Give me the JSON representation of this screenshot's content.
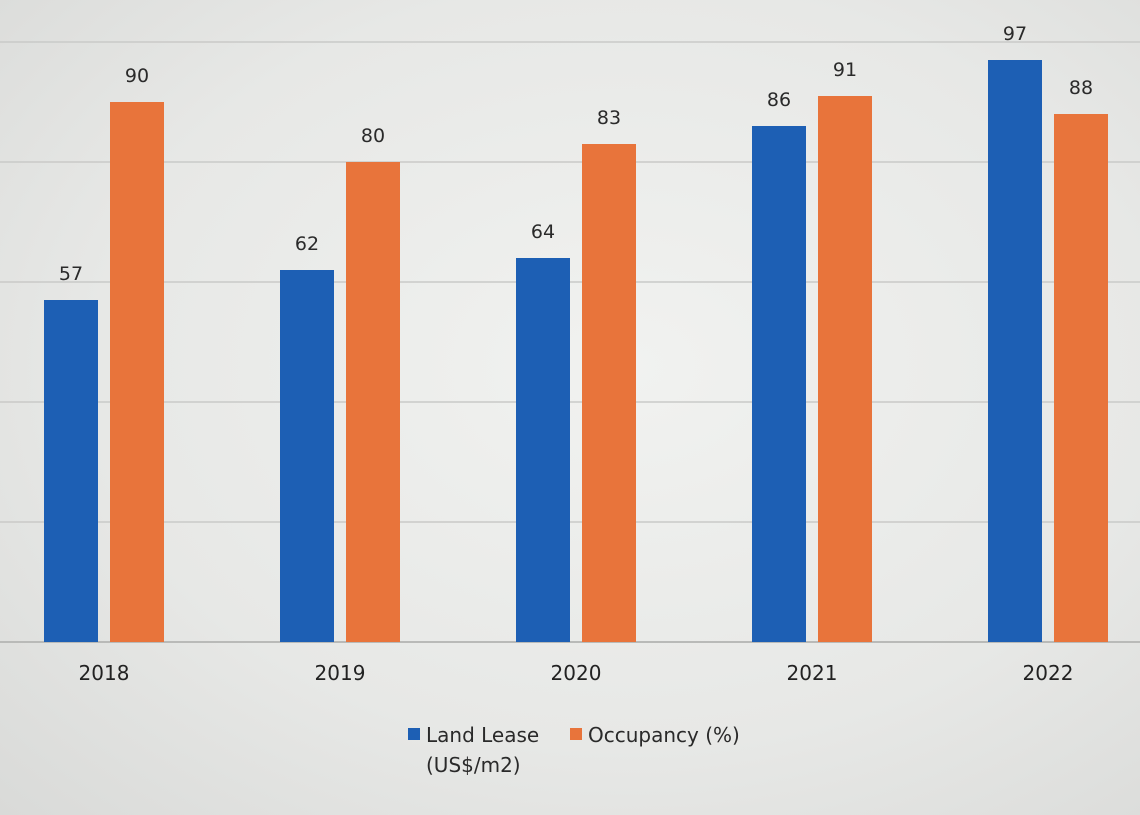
{
  "chart_data": {
    "type": "bar",
    "categories": [
      "2018",
      "2019",
      "2020",
      "2021",
      "2022"
    ],
    "series": [
      {
        "name": "Land Lease (US$/m2)",
        "values": [
          57,
          62,
          64,
          86,
          97
        ],
        "color": "#1d5fb4"
      },
      {
        "name": "Occupancy (%)",
        "values": [
          90,
          80,
          83,
          91,
          88
        ],
        "color": "#e8743b"
      }
    ],
    "ylim": [
      0,
      100
    ],
    "grid": true,
    "legend_position": "bottom",
    "data_labels": true
  }
}
